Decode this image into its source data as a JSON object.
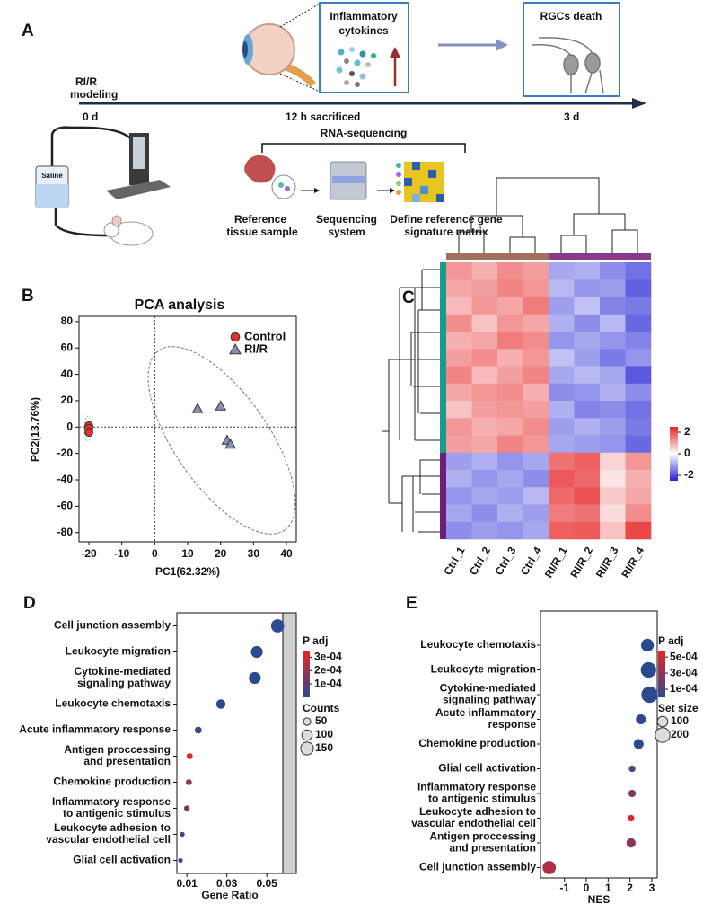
{
  "panel_labels": [
    "A",
    "B",
    "C",
    "D",
    "E"
  ],
  "panel_a": {
    "model": [
      "RI/R",
      "modeling"
    ],
    "day0": "0 d",
    "cytokines": [
      "Inflammatory",
      "cytokines"
    ],
    "sacrificed": "12 h sacrificed",
    "death": "RGCs death",
    "day3": "3 d",
    "saline": "Saline",
    "rnaseq": "RNA-sequencing",
    "tissue": [
      "Reference",
      "tissue sample"
    ],
    "system": [
      "Sequencing",
      "system"
    ],
    "matrix": [
      "Define reference gene",
      "signature matrix"
    ]
  },
  "chart_data": [
    {
      "type": "scatter",
      "title": "PCA analysis",
      "x_label": "PC1(62.32%)",
      "y_label": "PC2(13.76%)",
      "xlim": [
        -23,
        43
      ],
      "ylim": [
        -87,
        84
      ],
      "xticks": [
        -20,
        -10,
        0,
        10,
        20,
        30,
        40
      ],
      "yticks": [
        80,
        60,
        40,
        20,
        0,
        -20,
        -40,
        -60,
        -80
      ],
      "series": [
        {
          "name": "Control",
          "color": "#e3302c",
          "marker": "circle",
          "x": [
            -20,
            -20,
            -20
          ],
          "y": [
            1,
            -1,
            -4
          ]
        },
        {
          "name": "RI/R",
          "color": "#8891b5",
          "marker": "triangle",
          "x": [
            13,
            20,
            22,
            23
          ],
          "y": [
            14,
            16,
            -10,
            -13
          ]
        }
      ],
      "legend": "upper right"
    },
    {
      "type": "heatmap",
      "columns": [
        "Ctrl_1",
        "Ctrl_2",
        "Ctrl_3",
        "Ctrl_4",
        "RI/R_1",
        "RI/R_2",
        "RI/R_3",
        "RI/R_4"
      ],
      "values": [
        [
          1.2,
          0.9,
          1.3,
          1.1,
          -1.0,
          -0.9,
          -1.3,
          -1.6
        ],
        [
          1.0,
          1.1,
          1.4,
          1.2,
          -0.8,
          -1.2,
          -1.1,
          -1.8
        ],
        [
          0.8,
          1.2,
          1.0,
          1.5,
          -1.1,
          -0.7,
          -1.4,
          -1.5
        ],
        [
          1.3,
          0.7,
          1.2,
          1.0,
          -0.9,
          -1.3,
          -0.8,
          -1.7
        ],
        [
          0.9,
          1.0,
          1.5,
          1.3,
          -1.2,
          -1.0,
          -1.2,
          -1.4
        ],
        [
          1.1,
          1.3,
          0.9,
          1.2,
          -0.7,
          -1.1,
          -1.5,
          -1.2
        ],
        [
          1.4,
          0.8,
          1.1,
          1.4,
          -1.0,
          -0.8,
          -1.0,
          -1.9
        ],
        [
          1.0,
          1.2,
          1.3,
          0.9,
          -1.3,
          -1.2,
          -0.9,
          -1.3
        ],
        [
          0.7,
          1.1,
          1.2,
          1.1,
          -0.9,
          -1.4,
          -1.3,
          -1.6
        ],
        [
          1.2,
          0.9,
          1.0,
          1.3,
          -1.1,
          -0.9,
          -1.1,
          -1.5
        ],
        [
          1.1,
          1.0,
          1.4,
          1.2,
          -1.0,
          -1.1,
          -1.2,
          -1.7
        ],
        [
          -1.1,
          -0.9,
          -1.2,
          -1.0,
          1.6,
          1.8,
          0.5,
          1.2
        ],
        [
          -0.9,
          -1.2,
          -1.0,
          -1.3,
          1.9,
          1.7,
          0.3,
          0.9
        ],
        [
          -1.2,
          -1.0,
          -1.1,
          -0.8,
          1.7,
          2.0,
          0.6,
          1.0
        ],
        [
          -1.0,
          -1.3,
          -0.9,
          -1.1,
          1.5,
          1.6,
          0.4,
          1.3
        ],
        [
          -1.3,
          -1.1,
          -1.2,
          -1.0,
          1.8,
          1.9,
          0.7,
          2.1
        ]
      ],
      "color_range": [
        -2.5,
        2.5
      ],
      "colors": [
        "#2323d6",
        "#ffffff",
        "#e62424"
      ],
      "colorbar_ticks": [
        2,
        0,
        -2
      ]
    },
    {
      "type": "dot",
      "x_label": "Gene Ratio",
      "xlim": [
        0.005,
        0.058
      ],
      "xticks": [
        0.01,
        0.03,
        0.05
      ],
      "categories": [
        [
          "Cell junction assembly"
        ],
        [
          "Leukocyte migration"
        ],
        [
          "Cytokine-mediated",
          "signaling pathway"
        ],
        [
          "Leukocyte chemotaxis"
        ],
        [
          "Acute inflammatory response"
        ],
        [
          "Antigen proccessing",
          "and presentation"
        ],
        [
          "Chemokine production"
        ],
        [
          "Inflammatory response",
          "to antigenic stimulus"
        ],
        [
          "Leukocyte adhesion to",
          "vascular endothelial cell"
        ],
        [
          "Glial cell activation"
        ]
      ],
      "values": [
        0.0554,
        0.045,
        0.044,
        0.027,
        0.0157,
        0.0114,
        0.011,
        0.01,
        0.0077,
        0.0068
      ],
      "sizes": [
        160,
        130,
        130,
        80,
        45,
        35,
        33,
        30,
        22,
        20
      ],
      "padj": [
        1e-06,
        2e-06,
        2e-06,
        5e-06,
        2e-05,
        0.00032,
        0.00018,
        0.00015,
        5e-05,
        3e-05
      ],
      "color_label": "P adj",
      "color_range": [
        0,
        0.00035
      ],
      "colors": [
        "#2a4a90",
        "#ee2222"
      ],
      "color_ticks": [
        {
          "value": 0.0003,
          "label": "3e-04"
        },
        {
          "value": 0.0002,
          "label": "2e-04"
        },
        {
          "value": 0.0001,
          "label": "1e-04"
        }
      ],
      "size_label": "Counts",
      "size_ticks": [
        50,
        100,
        150
      ]
    },
    {
      "type": "dot",
      "x_label": "NES",
      "xlim": [
        -2.1,
        3.25
      ],
      "xticks": [
        -1,
        0,
        1,
        2,
        3
      ],
      "categories": [
        [
          "Leukocyte chemotaxis"
        ],
        [
          "Leukocyte migration"
        ],
        [
          "Cytokine-mediated",
          "signaling pathway"
        ],
        [
          "Acute inflammatory",
          "response"
        ],
        [
          "Chemokine production"
        ],
        [
          "Glial cell activation"
        ],
        [
          "Inflammatory response",
          "to antigenic stimulus"
        ],
        [
          "Leukocyte adhesion to",
          "vascular endothelial cell"
        ],
        [
          "Antigen proccessing",
          "and presentation"
        ],
        [
          "Cell junction assembly"
        ]
      ],
      "values": [
        2.8,
        2.85,
        2.9,
        2.5,
        2.4,
        2.1,
        2.1,
        2.05,
        2.05,
        -1.7
      ],
      "sizes": [
        150,
        220,
        250,
        90,
        90,
        40,
        50,
        40,
        80,
        160
      ],
      "padj": [
        1e-06,
        1e-06,
        1e-06,
        1e-05,
        1e-05,
        0.00015,
        0.00025,
        0.00052,
        0.0003,
        0.0004
      ],
      "color_label": "P adj",
      "color_range": [
        0,
        0.00058
      ],
      "colors": [
        "#2a4a90",
        "#ee2222"
      ],
      "color_ticks": [
        {
          "value": 0.0005,
          "label": "5e-04"
        },
        {
          "value": 0.0003,
          "label": "3e-04"
        },
        {
          "value": 0.0001,
          "label": "1e-04"
        }
      ],
      "size_label": "Set size",
      "size_ticks": [
        100,
        200
      ]
    }
  ]
}
